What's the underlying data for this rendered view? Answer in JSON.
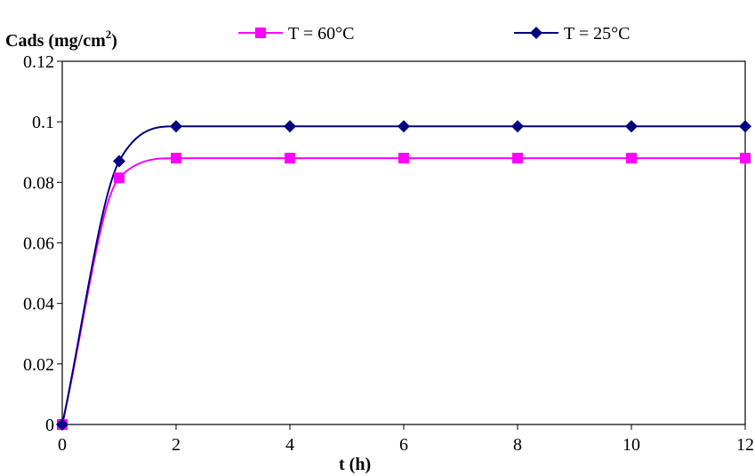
{
  "chart_data": {
    "type": "line",
    "title": "",
    "ylabel": {
      "main": "Cads (mg/cm",
      "sup": "2",
      "close": ")"
    },
    "xlabel": "t (h)",
    "x": [
      0,
      1,
      2,
      4,
      6,
      8,
      10,
      12
    ],
    "xlim": [
      0,
      12
    ],
    "ylim": [
      0,
      0.12
    ],
    "x_ticks": [
      "0",
      "2",
      "4",
      "6",
      "8",
      "10",
      "12"
    ],
    "x_tick_values": [
      0,
      2,
      4,
      6,
      8,
      10,
      12
    ],
    "y_ticks": [
      "0",
      "0.02",
      "0.04",
      "0.06",
      "0.08",
      "0.1",
      "0.12"
    ],
    "y_tick_values": [
      0,
      0.02,
      0.04,
      0.06,
      0.08,
      0.1,
      0.12
    ],
    "grid": false,
    "smooth": true,
    "legend_position": "top",
    "series": [
      {
        "name": "T = 60°C",
        "color": "#ff00ff",
        "marker": "square",
        "values": [
          0,
          0.0815,
          0.088,
          0.088,
          0.088,
          0.088,
          0.088,
          0.088
        ]
      },
      {
        "name": "T = 25°C",
        "color": "#000080",
        "marker": "diamond",
        "values": [
          0,
          0.087,
          0.0985,
          0.0985,
          0.0985,
          0.0985,
          0.0985,
          0.0985
        ]
      }
    ]
  }
}
